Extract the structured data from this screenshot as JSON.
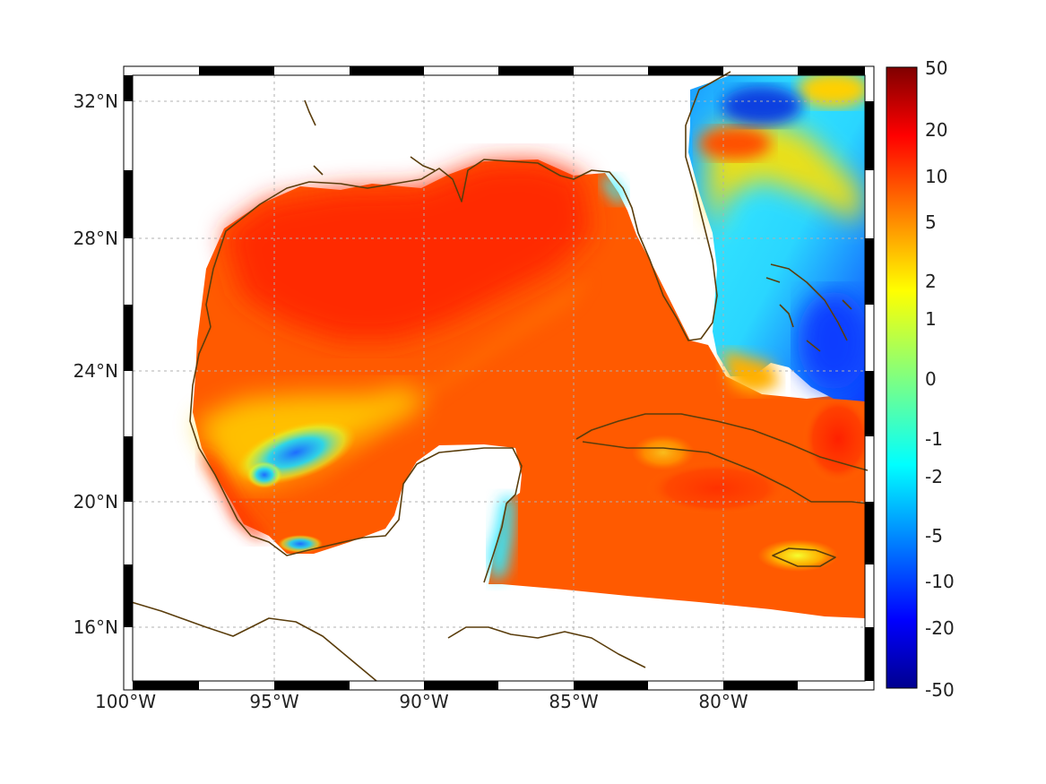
{
  "map": {
    "lon_ticks": [
      "100°W",
      "95°W",
      "90°W",
      "85°W",
      "80°W"
    ],
    "lat_ticks": [
      "32°N",
      "28°N",
      "24°N",
      "20°N",
      "16°N"
    ],
    "extent": {
      "lon": [
        -100,
        -75
      ],
      "lat": [
        14.3,
        32.9
      ]
    },
    "frame_style": "black-white alternating border",
    "grid": true,
    "coastline_color": "#5a3d0c"
  },
  "colorbar": {
    "labels": [
      "50",
      "20",
      "10",
      "5",
      "2",
      "1",
      "0",
      "-1",
      "-2",
      "-5",
      "-10",
      "-20",
      "-50"
    ],
    "colormap": "jet",
    "colors": [
      "#7f0000",
      "#ff0000",
      "#ff8000",
      "#ffff00",
      "#80ff80",
      "#00ffff",
      "#0080ff",
      "#0000ff",
      "#00008f"
    ]
  }
}
